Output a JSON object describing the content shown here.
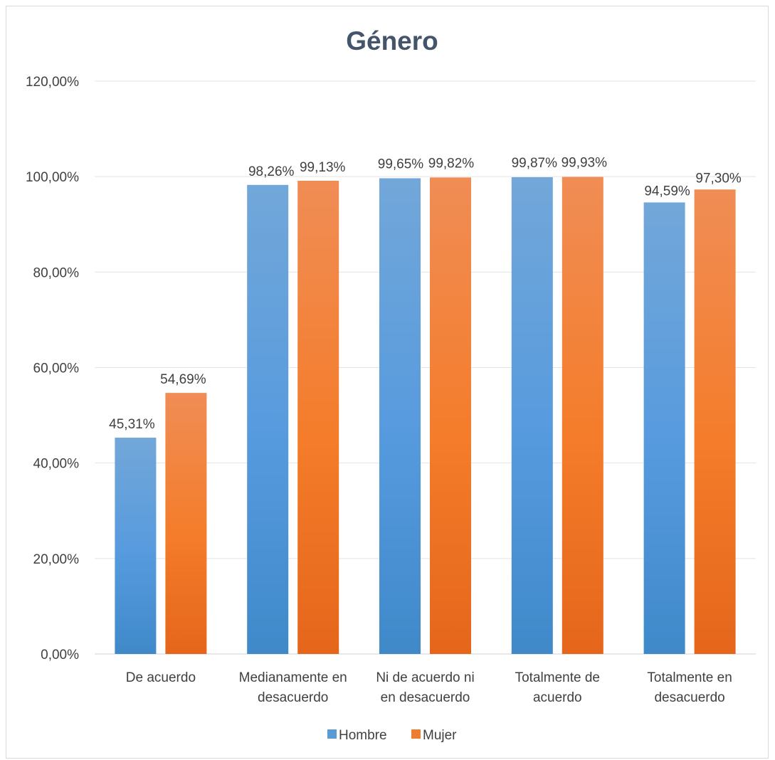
{
  "chart_data": {
    "type": "bar",
    "title": "Género",
    "xlabel": "",
    "ylabel": "",
    "ylim": [
      0,
      1.2
    ],
    "yticks": [
      "0,00%",
      "20,00%",
      "40,00%",
      "60,00%",
      "80,00%",
      "100,00%",
      "120,00%"
    ],
    "ytick_values": [
      0,
      0.2,
      0.4,
      0.6,
      0.8,
      1.0,
      1.2
    ],
    "categories": [
      [
        "De acuerdo"
      ],
      [
        "Medianamente en",
        "desacuerdo"
      ],
      [
        "Ni de acuerdo ni",
        "en desacuerdo"
      ],
      [
        "Totalmente de",
        "acuerdo"
      ],
      [
        "Totalmente en",
        "desacuerdo"
      ]
    ],
    "series": [
      {
        "name": "Hombre",
        "color": "#5b9bd5",
        "values": [
          0.4531,
          0.9826,
          0.9965,
          0.9987,
          0.9459
        ],
        "labels": [
          "45,31%",
          "98,26%",
          "99,65%",
          "99,87%",
          "94,59%"
        ]
      },
      {
        "name": "Mujer",
        "color": "#ed7d31",
        "values": [
          0.5469,
          0.9913,
          0.9982,
          0.9993,
          0.973
        ],
        "labels": [
          "54,69%",
          "99,13%",
          "99,82%",
          "99,93%",
          "97,30%"
        ]
      }
    ],
    "grid": true,
    "legend": "bottom"
  }
}
